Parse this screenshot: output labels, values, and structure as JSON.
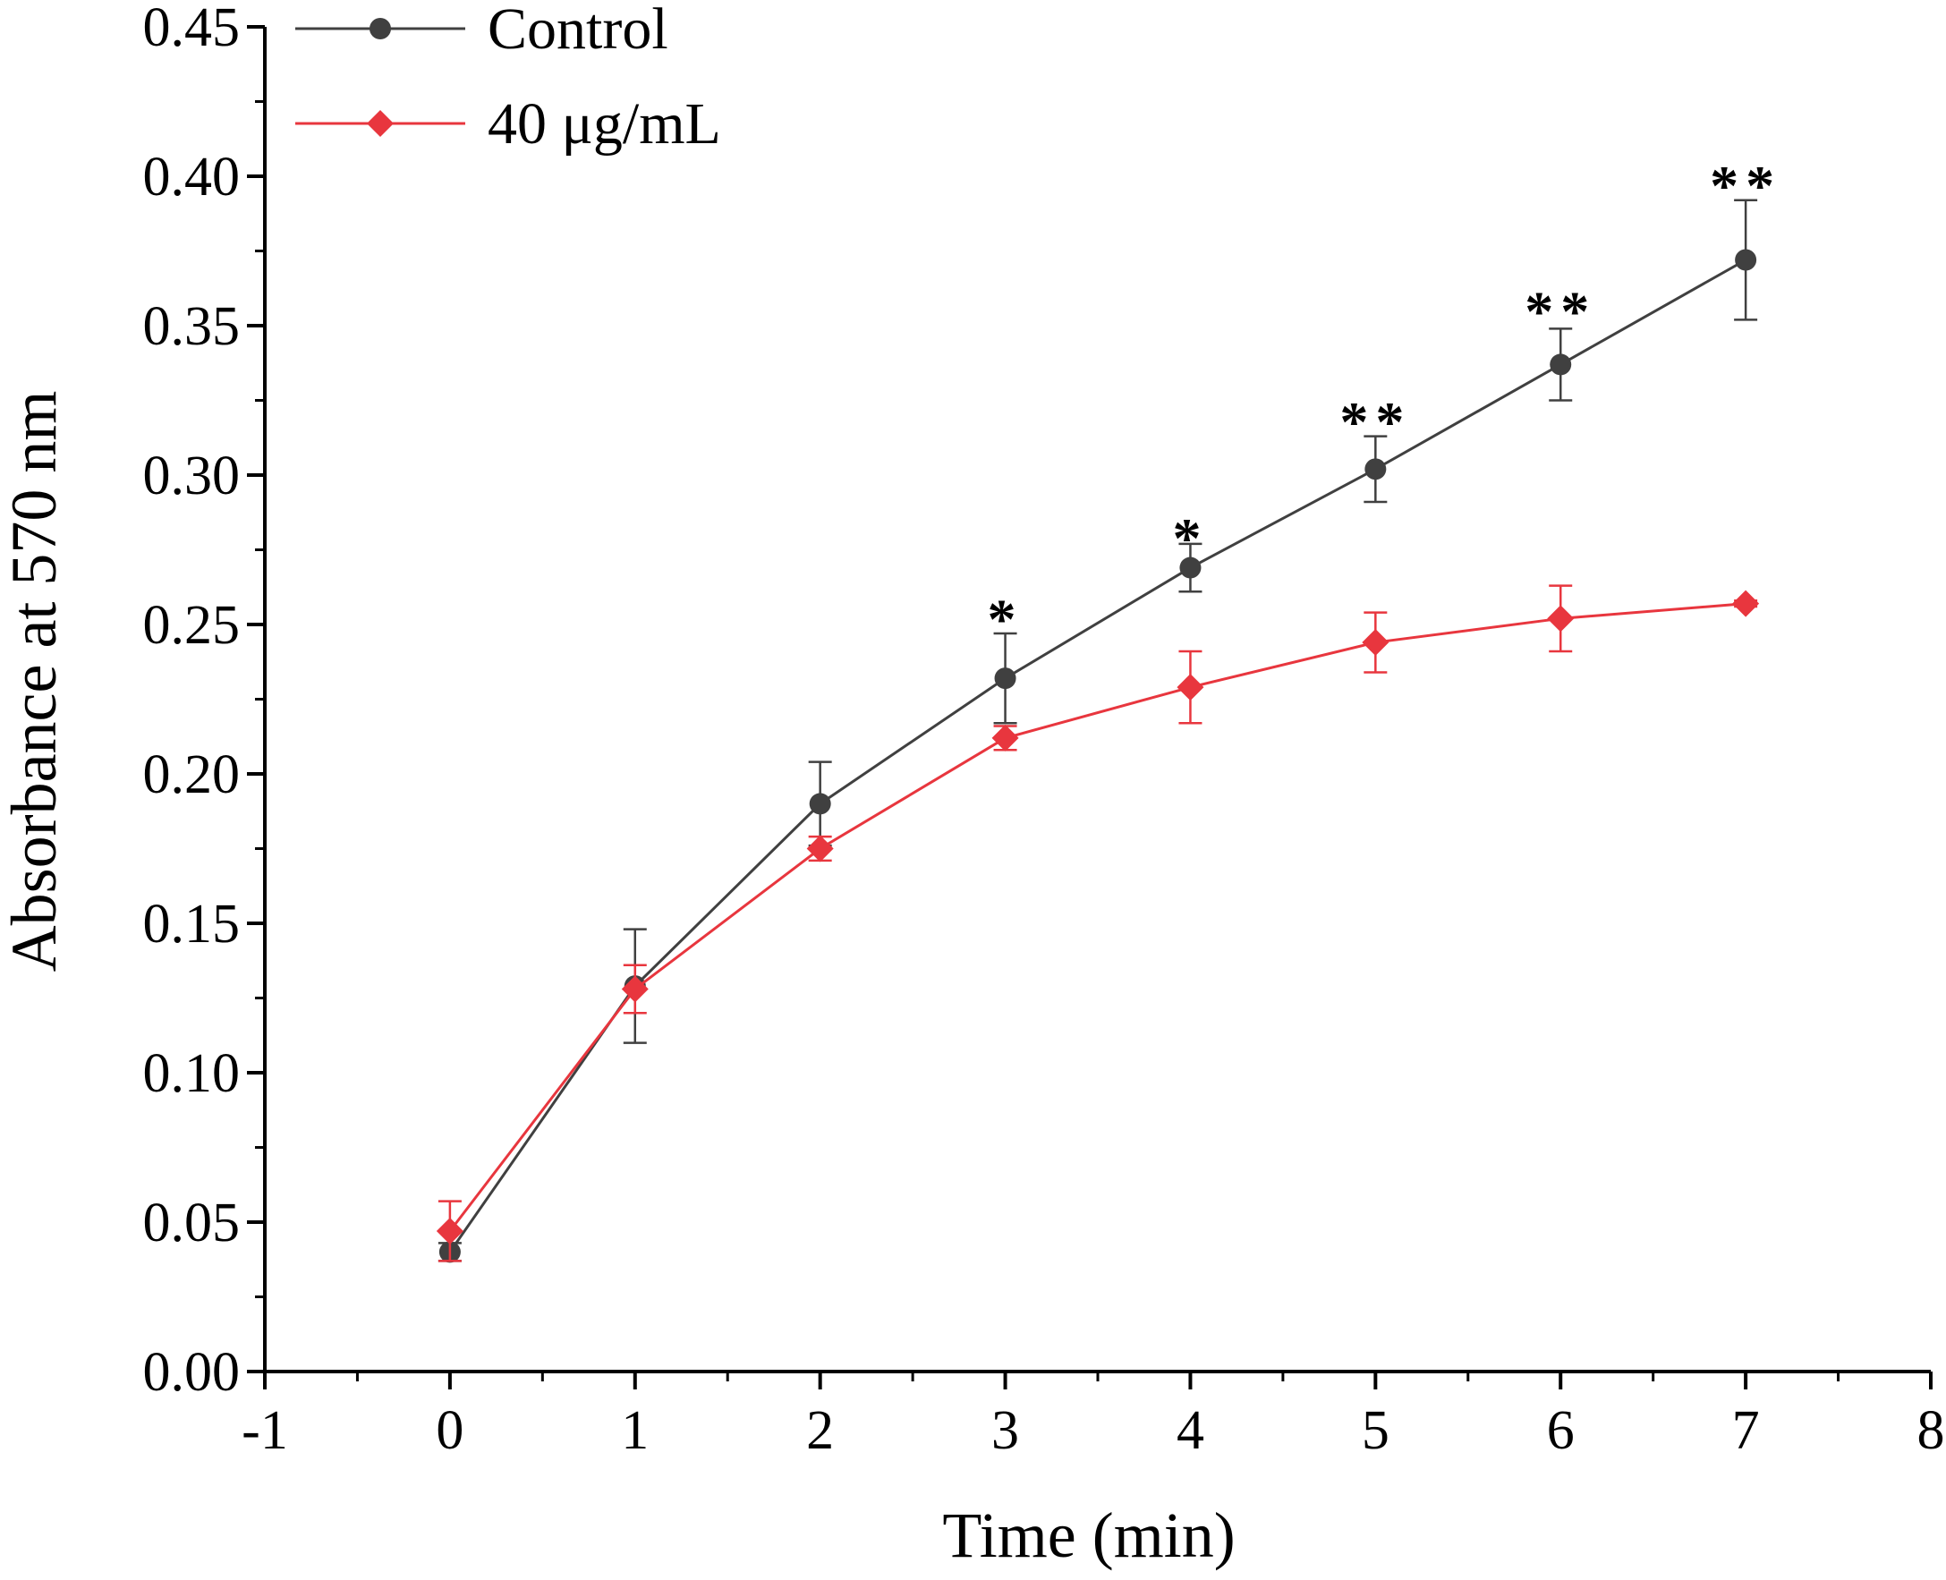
{
  "chart_data": {
    "type": "line",
    "title": "",
    "xlabel": "Time (min)",
    "ylabel": "Absorbance at 570 nm",
    "xlim": [
      -1,
      8
    ],
    "ylim": [
      0,
      0.45
    ],
    "xticks": [
      -1,
      0,
      1,
      2,
      3,
      4,
      5,
      6,
      7,
      8
    ],
    "xtick_labels": [
      "-1",
      "0",
      "1",
      "2",
      "3",
      "4",
      "5",
      "6",
      "7",
      "8"
    ],
    "yticks": [
      0,
      0.05,
      0.1,
      0.15,
      0.2,
      0.25,
      0.3,
      0.35,
      0.4,
      0.45
    ],
    "ytick_labels": [
      "0.00",
      "0.05",
      "0.10",
      "0.15",
      "0.20",
      "0.25",
      "0.30",
      "0.35",
      "0.40",
      "0.45"
    ],
    "grid": false,
    "legend_position": "top-left",
    "series": [
      {
        "name": "Control",
        "color": "#404040",
        "marker": "circle",
        "x": [
          0,
          1,
          2,
          3,
          4,
          5,
          6,
          7
        ],
        "y": [
          0.04,
          0.129,
          0.19,
          0.232,
          0.269,
          0.302,
          0.337,
          0.372
        ],
        "error": [
          0.003,
          0.019,
          0.014,
          0.015,
          0.008,
          0.011,
          0.012,
          0.02
        ]
      },
      {
        "name": "40 μg/mL",
        "color": "#e8363e",
        "marker": "diamond",
        "x": [
          0,
          1,
          2,
          3,
          4,
          5,
          6,
          7
        ],
        "y": [
          0.047,
          0.128,
          0.175,
          0.212,
          0.229,
          0.244,
          0.252,
          0.257
        ],
        "error": [
          0.01,
          0.008,
          0.004,
          0.004,
          0.012,
          0.01,
          0.011,
          0.001
        ]
      }
    ],
    "annotations": [
      {
        "x": 3,
        "y": 0.252,
        "text": "*"
      },
      {
        "x": 4,
        "y": 0.279,
        "text": "*"
      },
      {
        "x": 5,
        "y": 0.318,
        "text": "**"
      },
      {
        "x": 6,
        "y": 0.355,
        "text": "**"
      },
      {
        "x": 7,
        "y": 0.397,
        "text": "**"
      }
    ]
  }
}
